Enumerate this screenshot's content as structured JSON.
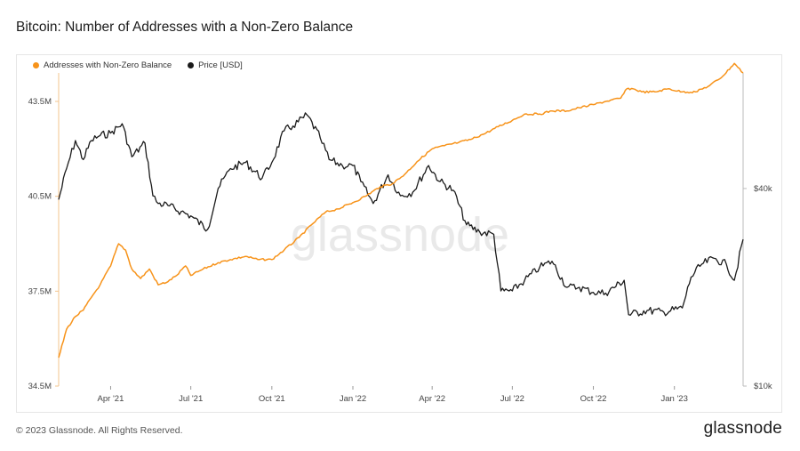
{
  "title": "Bitcoin: Number of Addresses with a Non-Zero Balance",
  "watermark": "glassnode",
  "footer": "© 2023 Glassnode. All Rights Reserved.",
  "logo": "glassnode",
  "colors": {
    "addresses": "#f7931a",
    "price": "#1a1a1a"
  },
  "chart_data": {
    "type": "line",
    "legend_placement": "top-left",
    "grid": false,
    "x_ticks": [
      "Apr '21",
      "Jul '21",
      "Oct '21",
      "Jan '22",
      "Apr '22",
      "Jul '22",
      "Oct '22",
      "Jan '23"
    ],
    "x_range": [
      "2021-02-01",
      "2023-03-20"
    ],
    "left_axis": {
      "ticks": [
        "43.5M",
        "40.5M",
        "37.5M",
        "34.5M"
      ],
      "tick_values": [
        43.5,
        40.5,
        37.5,
        34.5
      ],
      "range": [
        34.5,
        44.4
      ]
    },
    "right_axis": {
      "ticks": [
        "$40k",
        "$10k"
      ],
      "tick_values": [
        40000,
        10000
      ],
      "scale": "log",
      "range": [
        10000,
        90000
      ]
    },
    "series": [
      {
        "name": "Addresses with Non-Zero Balance",
        "axis": "left",
        "unit": "M",
        "points": [
          [
            "2021-02-01",
            35.4
          ],
          [
            "2021-02-10",
            36.3
          ],
          [
            "2021-02-20",
            36.7
          ],
          [
            "2021-03-01",
            36.9
          ],
          [
            "2021-03-10",
            37.3
          ],
          [
            "2021-03-20",
            37.7
          ],
          [
            "2021-04-01",
            38.3
          ],
          [
            "2021-04-10",
            39.0
          ],
          [
            "2021-04-18",
            38.8
          ],
          [
            "2021-04-25",
            38.2
          ],
          [
            "2021-05-05",
            37.9
          ],
          [
            "2021-05-15",
            38.2
          ],
          [
            "2021-05-25",
            37.7
          ],
          [
            "2021-06-05",
            37.8
          ],
          [
            "2021-06-15",
            38.0
          ],
          [
            "2021-06-25",
            38.3
          ],
          [
            "2021-07-01",
            38.0
          ],
          [
            "2021-07-15",
            38.2
          ],
          [
            "2021-08-01",
            38.4
          ],
          [
            "2021-08-15",
            38.5
          ],
          [
            "2021-09-01",
            38.6
          ],
          [
            "2021-09-15",
            38.5
          ],
          [
            "2021-10-01",
            38.5
          ],
          [
            "2021-10-15",
            38.8
          ],
          [
            "2021-11-01",
            39.2
          ],
          [
            "2021-11-15",
            39.6
          ],
          [
            "2021-12-01",
            40.0
          ],
          [
            "2021-12-15",
            40.1
          ],
          [
            "2022-01-01",
            40.3
          ],
          [
            "2022-01-15",
            40.5
          ],
          [
            "2022-02-01",
            40.8
          ],
          [
            "2022-02-15",
            40.9
          ],
          [
            "2022-03-01",
            41.2
          ],
          [
            "2022-03-15",
            41.6
          ],
          [
            "2022-04-01",
            42.0
          ],
          [
            "2022-04-15",
            42.1
          ],
          [
            "2022-05-01",
            42.2
          ],
          [
            "2022-05-15",
            42.3
          ],
          [
            "2022-06-01",
            42.5
          ],
          [
            "2022-06-15",
            42.7
          ],
          [
            "2022-07-01",
            42.9
          ],
          [
            "2022-07-15",
            43.1
          ],
          [
            "2022-08-01",
            43.1
          ],
          [
            "2022-08-15",
            43.2
          ],
          [
            "2022-09-01",
            43.2
          ],
          [
            "2022-09-15",
            43.3
          ],
          [
            "2022-10-01",
            43.4
          ],
          [
            "2022-10-15",
            43.5
          ],
          [
            "2022-11-01",
            43.6
          ],
          [
            "2022-11-08",
            43.9
          ],
          [
            "2022-11-15",
            43.9
          ],
          [
            "2022-11-25",
            43.8
          ],
          [
            "2022-12-10",
            43.8
          ],
          [
            "2022-12-25",
            43.9
          ],
          [
            "2023-01-10",
            43.8
          ],
          [
            "2023-01-25",
            43.8
          ],
          [
            "2023-02-10",
            44.0
          ],
          [
            "2023-02-25",
            44.3
          ],
          [
            "2023-03-10",
            44.7
          ],
          [
            "2023-03-20",
            44.4
          ]
        ]
      },
      {
        "name": "Price [USD]",
        "axis": "right",
        "unit": "USD",
        "points": [
          [
            "2021-02-01",
            37000
          ],
          [
            "2021-02-10",
            46000
          ],
          [
            "2021-02-20",
            56000
          ],
          [
            "2021-03-01",
            49000
          ],
          [
            "2021-03-10",
            56000
          ],
          [
            "2021-03-20",
            58000
          ],
          [
            "2021-04-01",
            59000
          ],
          [
            "2021-04-14",
            63000
          ],
          [
            "2021-04-25",
            50000
          ],
          [
            "2021-05-10",
            55000
          ],
          [
            "2021-05-19",
            38000
          ],
          [
            "2021-05-25",
            36000
          ],
          [
            "2021-06-05",
            35500
          ],
          [
            "2021-06-20",
            34000
          ],
          [
            "2021-07-01",
            33000
          ],
          [
            "2021-07-20",
            30000
          ],
          [
            "2021-08-01",
            40000
          ],
          [
            "2021-08-15",
            46000
          ],
          [
            "2021-09-01",
            48000
          ],
          [
            "2021-09-20",
            43000
          ],
          [
            "2021-10-01",
            48000
          ],
          [
            "2021-10-15",
            60000
          ],
          [
            "2021-10-25",
            62000
          ],
          [
            "2021-11-10",
            67000
          ],
          [
            "2021-11-25",
            57000
          ],
          [
            "2021-12-05",
            49000
          ],
          [
            "2021-12-20",
            47000
          ],
          [
            "2022-01-01",
            47000
          ],
          [
            "2022-01-10",
            42000
          ],
          [
            "2022-01-24",
            36000
          ],
          [
            "2022-02-10",
            44000
          ],
          [
            "2022-02-24",
            38000
          ],
          [
            "2022-03-10",
            39000
          ],
          [
            "2022-03-28",
            47000
          ],
          [
            "2022-04-10",
            42000
          ],
          [
            "2022-04-25",
            39500
          ],
          [
            "2022-05-10",
            31000
          ],
          [
            "2022-05-25",
            29500
          ],
          [
            "2022-06-10",
            29000
          ],
          [
            "2022-06-18",
            19500
          ],
          [
            "2022-07-01",
            19500
          ],
          [
            "2022-07-15",
            21000
          ],
          [
            "2022-08-01",
            23000
          ],
          [
            "2022-08-15",
            24000
          ],
          [
            "2022-09-01",
            20000
          ],
          [
            "2022-09-15",
            20000
          ],
          [
            "2022-10-01",
            19300
          ],
          [
            "2022-10-15",
            19200
          ],
          [
            "2022-11-05",
            21000
          ],
          [
            "2022-11-10",
            16500
          ],
          [
            "2022-12-01",
            17000
          ],
          [
            "2022-12-20",
            16800
          ],
          [
            "2023-01-10",
            17300
          ],
          [
            "2023-01-20",
            21500
          ],
          [
            "2023-02-01",
            23500
          ],
          [
            "2023-02-15",
            24500
          ],
          [
            "2023-03-01",
            23500
          ],
          [
            "2023-03-10",
            21000
          ],
          [
            "2023-03-20",
            28000
          ]
        ]
      }
    ]
  }
}
